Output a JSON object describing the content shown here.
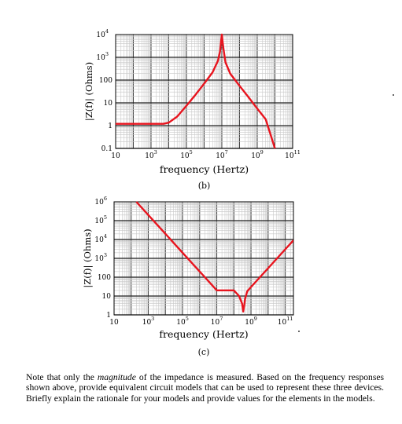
{
  "chart_data": [
    {
      "type": "line",
      "scale": "log-log",
      "grid": true,
      "xlabel": "frequency (Hertz)",
      "ylabel": "|Z(f)| (Ohms)",
      "caption": "(b)",
      "xlim": [
        10,
        100000000000
      ],
      "ylim": [
        0.1,
        10000
      ],
      "x_ticks": [
        {
          "value": 10,
          "label": "10"
        },
        {
          "value": 1000,
          "label": "10",
          "sup": "3"
        },
        {
          "value": 100000,
          "label": "10",
          "sup": "5"
        },
        {
          "value": 10000000,
          "label": "10",
          "sup": "7"
        },
        {
          "value": 1000000000,
          "label": "10",
          "sup": "9"
        },
        {
          "value": 100000000000,
          "label": "10",
          "sup": "11"
        }
      ],
      "y_ticks": [
        {
          "value": 0.1,
          "label": "0.1"
        },
        {
          "value": 1,
          "label": "1"
        },
        {
          "value": 10,
          "label": "10"
        },
        {
          "value": 100,
          "label": "100"
        },
        {
          "value": 1000,
          "label": "10",
          "sup": "3"
        },
        {
          "value": 10000,
          "label": "10",
          "sup": "4"
        }
      ],
      "series": [
        {
          "color": "#e8141e",
          "x": [
            10,
            5000,
            10000,
            30000,
            100000,
            300000,
            1000000,
            3000000,
            6000000,
            8000000,
            9000000,
            10000000,
            11000000,
            12500000,
            16000000,
            30000000,
            100000000,
            300000000,
            1000000000,
            3000000000,
            10000000000
          ],
          "y": [
            1.2,
            1.2,
            1.35,
            2.5,
            7.5,
            21,
            70,
            220,
            700,
            1900,
            5000,
            10000,
            5000,
            2200,
            600,
            190,
            56,
            19,
            5.6,
            1.9,
            0.1
          ]
        }
      ]
    },
    {
      "type": "line",
      "scale": "log-log",
      "grid": true,
      "xlabel": "frequency (Hertz)",
      "ylabel": "|Z(f)| (Ohms)",
      "caption": "(c)",
      "xlim": [
        10,
        300000000000
      ],
      "ylim": [
        1,
        1000000
      ],
      "x_ticks": [
        {
          "value": 10,
          "label": "10"
        },
        {
          "value": 1000,
          "label": "10",
          "sup": "3"
        },
        {
          "value": 100000,
          "label": "10",
          "sup": "5"
        },
        {
          "value": 10000000,
          "label": "10",
          "sup": "7"
        },
        {
          "value": 1000000000,
          "label": "10",
          "sup": "9"
        },
        {
          "value": 100000000000,
          "label": "10",
          "sup": "11"
        }
      ],
      "y_ticks": [
        {
          "value": 1,
          "label": "1"
        },
        {
          "value": 10,
          "label": "10"
        },
        {
          "value": 100,
          "label": "100"
        },
        {
          "value": 1000,
          "label": "10",
          "sup": "3"
        },
        {
          "value": 10000,
          "label": "10",
          "sup": "4"
        },
        {
          "value": 100000,
          "label": "10",
          "sup": "5"
        },
        {
          "value": 1000000,
          "label": "10",
          "sup": "6"
        }
      ],
      "series": [
        {
          "color": "#e8141e",
          "x": [
            200,
            1000,
            10000,
            100000,
            1000000,
            10000000,
            100000000,
            200000000,
            300000000,
            350000000,
            400000000,
            450000000,
            600000000,
            1000000000,
            10000000000,
            100000000000,
            300000000000
          ],
          "y": [
            1000000,
            200000,
            20000,
            2000,
            200,
            20,
            20,
            10,
            4,
            1.5,
            3,
            7,
            18,
            30,
            300,
            3000,
            9000
          ]
        }
      ]
    }
  ],
  "note": {
    "line1_before": "Note that only the ",
    "emphasis": "magnitude",
    "line1_after": " of the impedance is measured.  Based on the frequency responses shown above, provide equivalent circuit models that can be used to represent these three devices.  Briefly explain the rationale for your models and provide values for the elements in the models."
  }
}
